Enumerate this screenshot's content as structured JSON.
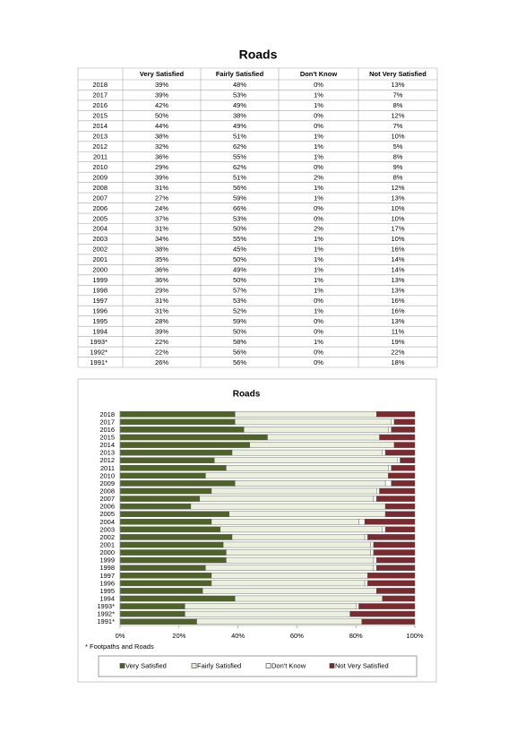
{
  "title": "Roads",
  "table": {
    "header": [
      "Very Satisfied",
      "Fairly Satisfied",
      "Don't Know",
      "Not Very Satisfied"
    ],
    "rows": [
      [
        "2018",
        "39%",
        "48%",
        "0%",
        "13%"
      ],
      [
        "2017",
        "39%",
        "53%",
        "1%",
        "7%"
      ],
      [
        "2016",
        "42%",
        "49%",
        "1%",
        "8%"
      ],
      [
        "2015",
        "50%",
        "38%",
        "0%",
        "12%"
      ],
      [
        "2014",
        "44%",
        "49%",
        "0%",
        "7%"
      ],
      [
        "2013",
        "38%",
        "51%",
        "1%",
        "10%"
      ],
      [
        "2012",
        "32%",
        "62%",
        "1%",
        "5%"
      ],
      [
        "2011",
        "36%",
        "55%",
        "1%",
        "8%"
      ],
      [
        "2010",
        "29%",
        "62%",
        "0%",
        "9%"
      ],
      [
        "2009",
        "39%",
        "51%",
        "2%",
        "8%"
      ],
      [
        "2008",
        "31%",
        "56%",
        "1%",
        "12%"
      ],
      [
        "2007",
        "27%",
        "59%",
        "1%",
        "13%"
      ],
      [
        "2006",
        "24%",
        "66%",
        "0%",
        "10%"
      ],
      [
        "2005",
        "37%",
        "53%",
        "0%",
        "10%"
      ],
      [
        "2004",
        "31%",
        "50%",
        "2%",
        "17%"
      ],
      [
        "2003",
        "34%",
        "55%",
        "1%",
        "10%"
      ],
      [
        "2002",
        "38%",
        "45%",
        "1%",
        "16%"
      ],
      [
        "2001",
        "35%",
        "50%",
        "1%",
        "14%"
      ],
      [
        "2000",
        "36%",
        "49%",
        "1%",
        "14%"
      ],
      [
        "1999",
        "36%",
        "50%",
        "1%",
        "13%"
      ],
      [
        "1998",
        "29%",
        "57%",
        "1%",
        "13%"
      ],
      [
        "1997",
        "31%",
        "53%",
        "0%",
        "16%"
      ],
      [
        "1996",
        "31%",
        "52%",
        "1%",
        "16%"
      ],
      [
        "1995",
        "28%",
        "59%",
        "0%",
        "13%"
      ],
      [
        "1994",
        "39%",
        "50%",
        "0%",
        "11%"
      ],
      [
        "1993*",
        "22%",
        "58%",
        "1%",
        "19%"
      ],
      [
        "1992*",
        "22%",
        "56%",
        "0%",
        "22%"
      ],
      [
        "1991*",
        "26%",
        "56%",
        "0%",
        "18%"
      ]
    ]
  },
  "chart_data": {
    "type": "bar",
    "orientation": "horizontal",
    "stacked": true,
    "title": "Roads",
    "categories": [
      "2018",
      "2017",
      "2016",
      "2015",
      "2014",
      "2013",
      "2012",
      "2011",
      "2010",
      "2009",
      "2008",
      "2007",
      "2006",
      "2005",
      "2004",
      "2003",
      "2002",
      "2001",
      "2000",
      "1999",
      "1998",
      "1997",
      "1996",
      "1995",
      "1994",
      "1993*",
      "1992*",
      "1991*"
    ],
    "series": [
      {
        "name": "Very Satisfied",
        "color": "#4f6228",
        "values": [
          39,
          39,
          42,
          50,
          44,
          38,
          32,
          36,
          29,
          39,
          31,
          27,
          24,
          37,
          31,
          34,
          38,
          35,
          36,
          36,
          29,
          31,
          31,
          28,
          39,
          22,
          22,
          26
        ]
      },
      {
        "name": "Fairly Satisfied",
        "color": "#ebf1de",
        "values": [
          48,
          53,
          49,
          38,
          49,
          51,
          62,
          55,
          62,
          51,
          56,
          59,
          66,
          53,
          50,
          55,
          45,
          50,
          49,
          50,
          57,
          53,
          52,
          59,
          50,
          58,
          56,
          56
        ]
      },
      {
        "name": "Don't Know",
        "color": "#ffffff",
        "values": [
          0,
          1,
          1,
          0,
          0,
          1,
          1,
          1,
          0,
          2,
          1,
          1,
          0,
          0,
          2,
          1,
          1,
          1,
          1,
          1,
          1,
          0,
          1,
          0,
          0,
          1,
          0,
          0
        ]
      },
      {
        "name": "Not Very Satisfied",
        "color": "#7b2a30",
        "values": [
          13,
          7,
          8,
          12,
          7,
          10,
          5,
          8,
          9,
          8,
          12,
          13,
          10,
          10,
          17,
          10,
          16,
          14,
          14,
          13,
          13,
          16,
          16,
          13,
          11,
          19,
          22,
          18
        ]
      }
    ],
    "xlim": [
      0,
      100
    ],
    "xticks": [
      {
        "value": 0,
        "label": "0%"
      },
      {
        "value": 20,
        "label": "20%"
      },
      {
        "value": 40,
        "label": "40%"
      },
      {
        "value": 60,
        "label": "60%"
      },
      {
        "value": 80,
        "label": "80%"
      },
      {
        "value": 100,
        "label": "100%"
      }
    ],
    "footnote": "* Footpaths and Roads",
    "legend": "bottom"
  }
}
